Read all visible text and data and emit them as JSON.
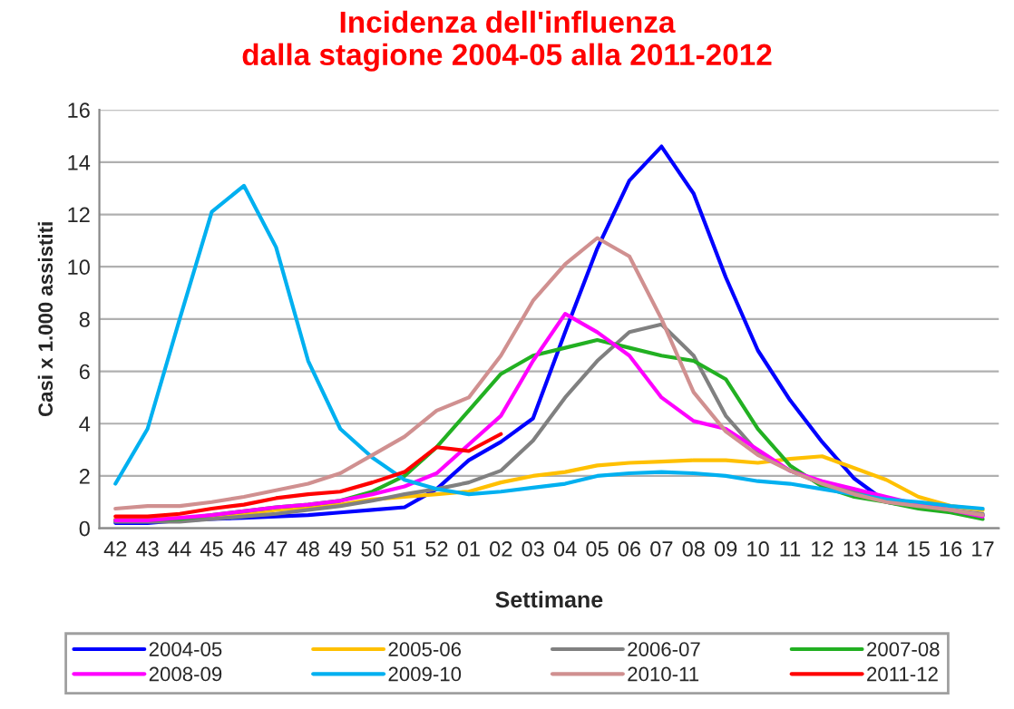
{
  "chart_data": {
    "type": "line",
    "title": "Incidenza dell'influenza\ndalla stagione 2004-05 alla 2011-2012",
    "xlabel": "Settimane",
    "ylabel": "Casi x 1.000 assistiti",
    "categories": [
      "42",
      "43",
      "44",
      "45",
      "46",
      "47",
      "48",
      "49",
      "50",
      "51",
      "52",
      "01",
      "02",
      "03",
      "04",
      "05",
      "06",
      "07",
      "08",
      "09",
      "10",
      "11",
      "12",
      "13",
      "14",
      "15",
      "16",
      "17"
    ],
    "ylim": [
      0,
      16
    ],
    "yticks": [
      0,
      2,
      4,
      6,
      8,
      10,
      12,
      14,
      16
    ],
    "grid": "y",
    "legend": "bottom",
    "series": [
      {
        "name": "2004-05",
        "color": "#0000ff",
        "values": [
          0.2,
          0.2,
          0.3,
          0.35,
          0.4,
          0.45,
          0.5,
          0.6,
          0.7,
          0.8,
          1.5,
          2.6,
          3.3,
          4.2,
          7.5,
          10.7,
          13.3,
          14.6,
          12.8,
          9.6,
          6.8,
          4.9,
          3.3,
          1.9,
          1.0,
          0.8,
          0.65,
          0.5
        ]
      },
      {
        "name": "2005-06",
        "color": "#ffc000",
        "values": [
          0.35,
          0.35,
          0.4,
          0.45,
          0.55,
          0.7,
          0.8,
          0.9,
          1.1,
          1.2,
          1.3,
          1.4,
          1.75,
          2.0,
          2.15,
          2.4,
          2.5,
          2.55,
          2.6,
          2.6,
          2.5,
          2.65,
          2.75,
          2.3,
          1.85,
          1.2,
          0.85,
          0.7
        ]
      },
      {
        "name": "2006-07",
        "color": "#808080",
        "values": [
          0.25,
          0.25,
          0.25,
          0.35,
          0.45,
          0.55,
          0.7,
          0.85,
          1.05,
          1.3,
          1.5,
          1.75,
          2.2,
          3.35,
          5.0,
          6.4,
          7.5,
          7.8,
          6.6,
          4.3,
          2.9,
          2.2,
          1.7,
          1.4,
          1.1,
          0.85,
          0.7,
          0.55
        ]
      },
      {
        "name": "2007-08",
        "color": "#22b022",
        "values": [
          0.3,
          0.3,
          0.35,
          0.5,
          0.65,
          0.8,
          0.9,
          1.05,
          1.4,
          2.0,
          3.1,
          4.5,
          5.9,
          6.6,
          6.9,
          7.2,
          6.9,
          6.6,
          6.4,
          5.7,
          3.8,
          2.4,
          1.6,
          1.2,
          1.0,
          0.75,
          0.6,
          0.35
        ]
      },
      {
        "name": "2008-09",
        "color": "#ff00ff",
        "values": [
          0.3,
          0.3,
          0.4,
          0.5,
          0.65,
          0.8,
          0.9,
          1.05,
          1.3,
          1.6,
          2.1,
          3.2,
          4.3,
          6.4,
          8.2,
          7.5,
          6.6,
          5.0,
          4.1,
          3.8,
          3.0,
          2.2,
          1.8,
          1.5,
          1.2,
          0.9,
          0.7,
          0.45
        ]
      },
      {
        "name": "2009-10",
        "color": "#00b0f0",
        "values": [
          1.7,
          3.8,
          8.0,
          12.1,
          13.1,
          10.75,
          6.4,
          3.8,
          2.7,
          1.85,
          1.5,
          1.3,
          1.4,
          1.55,
          1.7,
          2.0,
          2.1,
          2.15,
          2.1,
          2.0,
          1.8,
          1.7,
          1.5,
          1.3,
          1.1,
          1.0,
          0.85,
          0.75
        ]
      },
      {
        "name": "2010-11",
        "color": "#d09090",
        "values": [
          0.75,
          0.85,
          0.85,
          1.0,
          1.2,
          1.45,
          1.7,
          2.1,
          2.8,
          3.5,
          4.5,
          5.0,
          6.6,
          8.7,
          10.1,
          11.1,
          10.4,
          8.0,
          5.2,
          3.7,
          2.8,
          2.2,
          1.7,
          1.3,
          1.0,
          0.85,
          0.7,
          0.5
        ]
      },
      {
        "name": "2011-12",
        "color": "#ff0000",
        "values": [
          0.45,
          0.45,
          0.55,
          0.75,
          0.9,
          1.15,
          1.3,
          1.4,
          1.75,
          2.15,
          3.1,
          2.95,
          3.6,
          null,
          null,
          null,
          null,
          null,
          null,
          null,
          null,
          null,
          null,
          null,
          null,
          null,
          null,
          null
        ]
      }
    ]
  }
}
